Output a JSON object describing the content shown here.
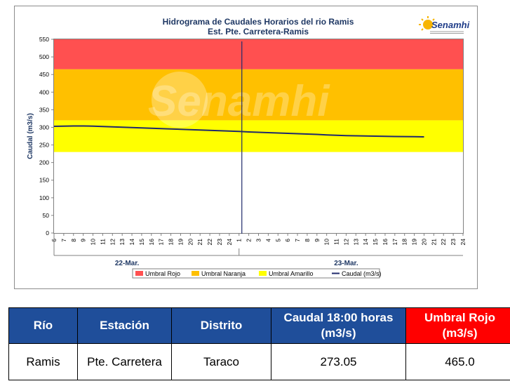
{
  "chart_data": {
    "type": "line",
    "title": "Hidrograma de Caudales Horarios del rio Ramis",
    "subtitle": "Est. Pte. Carretera-Ramis",
    "ylabel": "Caudal (m3/s)",
    "ylim": [
      0,
      550
    ],
    "yticks": [
      0,
      50,
      100,
      150,
      200,
      250,
      300,
      350,
      400,
      450,
      500,
      550
    ],
    "xticks": [
      "6",
      "7",
      "8",
      "9",
      "10",
      "11",
      "12",
      "13",
      "14",
      "15",
      "16",
      "17",
      "18",
      "19",
      "20",
      "21",
      "22",
      "23",
      "24",
      "1",
      "2",
      "3",
      "4",
      "5",
      "6",
      "7",
      "8",
      "9",
      "10",
      "11",
      "12",
      "13",
      "14",
      "15",
      "16",
      "17",
      "18",
      "19",
      "20",
      "21",
      "22",
      "23",
      "24"
    ],
    "days": [
      "22-Mar.",
      "23-Mar."
    ],
    "current_time_tick": "1",
    "bands": [
      {
        "name": "Umbral Amarillo",
        "from": 230,
        "to": 320,
        "color": "#ffff00"
      },
      {
        "name": "Umbral Naranja",
        "from": 320,
        "to": 465,
        "color": "#ffc000"
      },
      {
        "name": "Umbral Rojo",
        "from": 465,
        "to": 550,
        "color": "#ff5050"
      }
    ],
    "series": [
      {
        "name": "Caudal (m3/s)",
        "color": "#1f2a6b",
        "values": [
          303,
          303.5,
          304,
          304,
          303.5,
          302.5,
          301.5,
          300.5,
          299.5,
          298.5,
          297.5,
          296.5,
          295.5,
          294.5,
          293.5,
          292.5,
          291.5,
          290.5,
          289.5,
          288.5,
          287,
          286,
          285,
          284,
          283,
          282,
          281,
          280,
          278.5,
          277.5,
          276.5,
          276,
          275.5,
          275,
          274.5,
          274,
          273.8,
          273.5,
          273.05
        ]
      }
    ],
    "legend": [
      "Umbral Rojo",
      "Umbral Naranja",
      "Umbral Amarillo",
      "Caudal (m3/s)"
    ],
    "legend_position": "bottom",
    "grid": false
  },
  "logo": {
    "text": "Senamhi",
    "watermark": "Senamhi"
  },
  "table": {
    "headers": [
      "Río",
      "Estación",
      "Distrito",
      "Caudal  18:00 horas (m3/s)",
      "Umbral Rojo (m3/s)"
    ],
    "row": [
      "Ramis",
      "Pte. Carretera",
      "Taraco",
      "273.05",
      "465.0"
    ]
  }
}
